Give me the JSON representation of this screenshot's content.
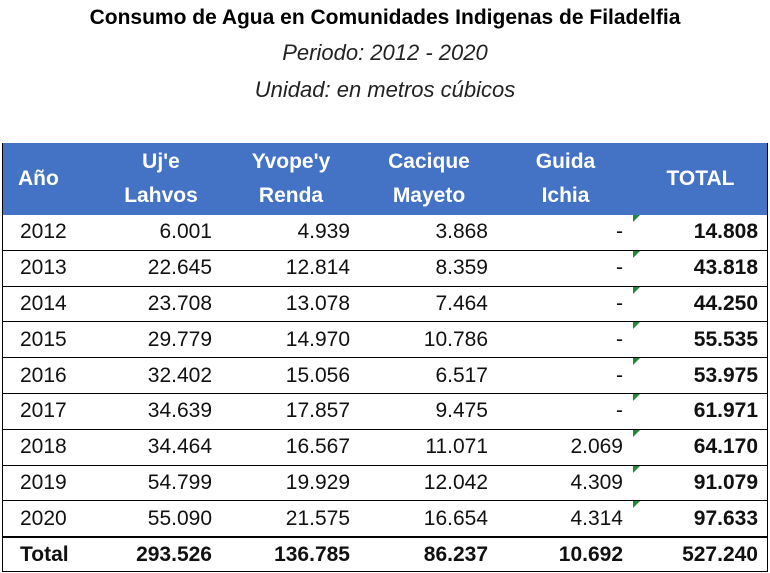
{
  "header": {
    "title": "Consumo de Agua en Comunidades Indigenas de Filadelfia",
    "subtitle": "Periodo: 2012 - 2020",
    "unit": "Unidad: en metros cúbicos"
  },
  "table": {
    "columns": [
      [
        "Año"
      ],
      [
        "Uj'e",
        "Lahvos"
      ],
      [
        "Yvope'y",
        "Renda"
      ],
      [
        "Cacique",
        "Mayeto"
      ],
      [
        "Guida",
        "Ichia"
      ],
      [
        "TOTAL"
      ]
    ],
    "rows": [
      [
        "2012",
        "6.001",
        "4.939",
        "3.868",
        "-",
        "14.808"
      ],
      [
        "2013",
        "22.645",
        "12.814",
        "8.359",
        "-",
        "43.818"
      ],
      [
        "2014",
        "23.708",
        "13.078",
        "7.464",
        "-",
        "44.250"
      ],
      [
        "2015",
        "29.779",
        "14.970",
        "10.786",
        "-",
        "55.535"
      ],
      [
        "2016",
        "32.402",
        "15.056",
        "6.517",
        "-",
        "53.975"
      ],
      [
        "2017",
        "34.639",
        "17.857",
        "9.475",
        "-",
        "61.971"
      ],
      [
        "2018",
        "34.464",
        "16.567",
        "11.071",
        "2.069",
        "64.170"
      ],
      [
        "2019",
        "54.799",
        "19.929",
        "12.042",
        "4.309",
        "91.079"
      ],
      [
        "2020",
        "55.090",
        "21.575",
        "16.654",
        "4.314",
        "97.633"
      ]
    ],
    "total": [
      "Total",
      "293.526",
      "136.785",
      "86.237",
      "10.692",
      "527.240"
    ]
  }
}
